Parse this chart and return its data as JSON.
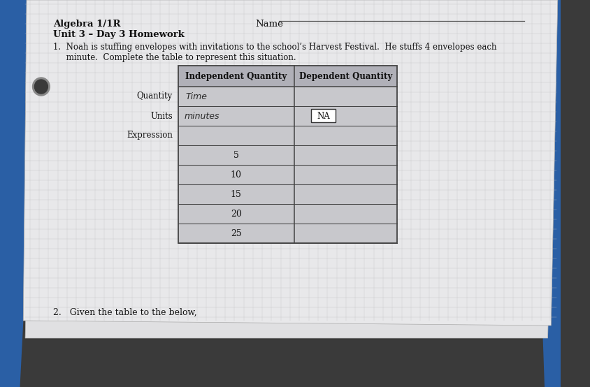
{
  "title_left": "Algebra 1/1R",
  "title_left2": "Unit 3 – Day 3 Homework",
  "name_label": "Name",
  "question_text_line1": "1.  Noah is stuffing envelopes with invitations to the school’s Harvest Festival.  He stuffs 4 envelopes each",
  "question_text_line2": "     minute.  Complete the table to represent this situation.",
  "question2_text": "2.   Given the table to the below,",
  "col1_header": "Independent Quantity",
  "col2_header": "Dependent Quantity",
  "row_labels": [
    "Quantity",
    "Units",
    "Expression"
  ],
  "row_val_q_col1": "Time",
  "row_val_u_col1": "minutes",
  "data_rows_col1": [
    "5",
    "10",
    "15",
    "20",
    "25"
  ],
  "bg_dark": "#3a3a3a",
  "bg_dark2": "#2a2a2a",
  "paper_color": "#e8e8ea",
  "paper_color2": "#dddde0",
  "blue_binder": "#2a5fa5",
  "table_header_bg": "#b0b0b8",
  "table_body_bg": "#c8c8cc",
  "table_line_color": "#666666",
  "text_color": "#111111",
  "handwriting_color": "#2a2a2a",
  "name_line_color": "#555555",
  "grid_color": "#c0c0c4"
}
